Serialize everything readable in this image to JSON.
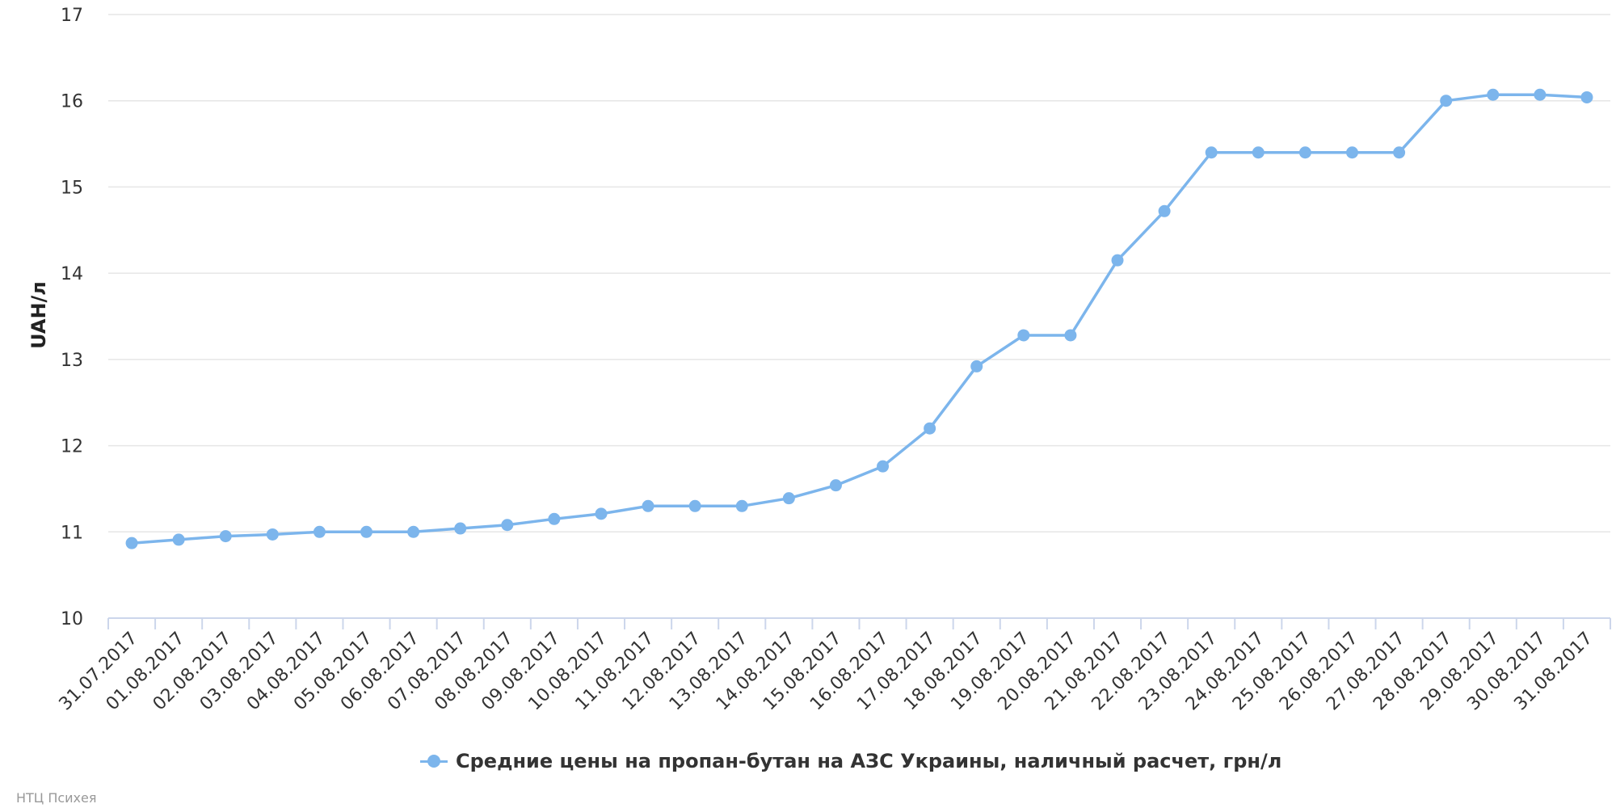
{
  "chart_data": {
    "type": "line",
    "ylabel": "UAH/л",
    "ylim": [
      10,
      17
    ],
    "yticks": [
      "10",
      "11",
      "12",
      "13",
      "14",
      "15",
      "16",
      "17"
    ],
    "grid": true,
    "legend_position": "bottom-center",
    "categories": [
      "31.07.2017",
      "01.08.2017",
      "02.08.2017",
      "03.08.2017",
      "04.08.2017",
      "05.08.2017",
      "06.08.2017",
      "07.08.2017",
      "08.08.2017",
      "09.08.2017",
      "10.08.2017",
      "11.08.2017",
      "12.08.2017",
      "13.08.2017",
      "14.08.2017",
      "15.08.2017",
      "16.08.2017",
      "17.08.2017",
      "18.08.2017",
      "19.08.2017",
      "20.08.2017",
      "21.08.2017",
      "22.08.2017",
      "23.08.2017",
      "24.08.2017",
      "25.08.2017",
      "26.08.2017",
      "27.08.2017",
      "28.08.2017",
      "29.08.2017",
      "30.08.2017",
      "31.08.2017"
    ],
    "series": [
      {
        "name": "Средние цены на пропан-бутан на АЗС Украины, наличный расчет, грн/л",
        "color": "#7cb5ec",
        "values": [
          10.87,
          10.91,
          10.95,
          10.97,
          11.0,
          11.0,
          11.0,
          11.04,
          11.08,
          11.15,
          11.21,
          11.3,
          11.3,
          11.3,
          11.39,
          11.54,
          11.76,
          12.2,
          12.92,
          13.28,
          13.28,
          14.15,
          14.72,
          15.4,
          15.4,
          15.4,
          15.4,
          15.4,
          16.0,
          16.07,
          16.07,
          16.04
        ]
      }
    ]
  },
  "credits": "НТЦ Психея",
  "colors": {
    "grid": "#e6e6e6",
    "axis": "#ccd6eb",
    "series": "#7cb5ec"
  }
}
